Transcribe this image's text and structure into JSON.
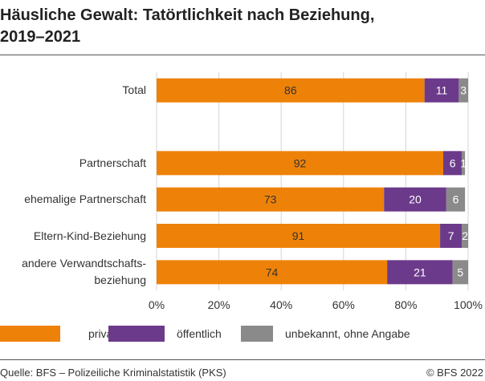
{
  "chart_data": {
    "type": "stacked-bar-horizontal",
    "title": "Häusliche Gewalt: Tatörtlichkeit nach Beziehung,\n2019–2021",
    "categories": [
      "Total",
      null,
      "Partnerschaft",
      "ehemalige Partnerschaft",
      "Eltern-Kind-Beziehung",
      "andere Verwandtschafts-\nbeziehung"
    ],
    "series": [
      {
        "name": "privat",
        "color": "#ee8208",
        "values": [
          86,
          null,
          92,
          73,
          91,
          74
        ]
      },
      {
        "name": "öffentlich",
        "color": "#6c3a8b",
        "values": [
          11,
          null,
          6,
          20,
          7,
          21
        ]
      },
      {
        "name": "unbekannt, ohne Angabe",
        "color": "#8a8a8a",
        "values": [
          3,
          null,
          1,
          6,
          2,
          5
        ]
      }
    ],
    "xlim": [
      0,
      100
    ],
    "xticks": [
      {
        "value": 0,
        "label": "0%"
      },
      {
        "value": 20,
        "label": "20%"
      },
      {
        "value": 40,
        "label": "40%"
      },
      {
        "value": 60,
        "label": "60%"
      },
      {
        "value": 80,
        "label": "80%"
      },
      {
        "value": 100,
        "label": "100%"
      }
    ],
    "grid": true,
    "source": "Quelle: BFS – Polizeiliche Kriminalstatistik (PKS)",
    "copyright": "© BFS 2022"
  }
}
